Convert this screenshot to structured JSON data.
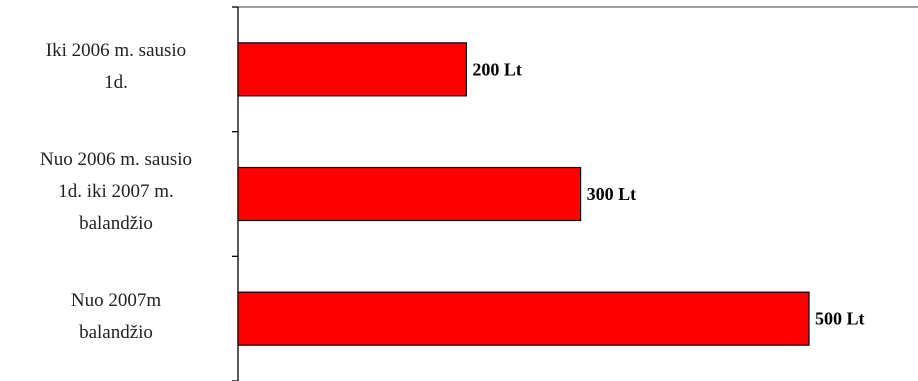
{
  "chart_data": {
    "type": "bar",
    "orientation": "horizontal",
    "categories": [
      "Iki 2006 m.  sausio 1d.",
      "Nuo 2006 m. sausio 1d. iki 2007 m. balandžio",
      "Nuo 2007m balandžio"
    ],
    "category_lines": [
      [
        "Iki 2006 m.  sausio",
        "1d."
      ],
      [
        "Nuo 2006 m. sausio",
        "1d. iki 2007 m.",
        "balandžio"
      ],
      [
        "Nuo 2007m",
        "balandžio"
      ]
    ],
    "values": [
      200,
      300,
      500
    ],
    "data_labels": [
      "200 Lt",
      "300 Lt",
      "500 Lt"
    ],
    "xlim": [
      0,
      550
    ],
    "grid": false,
    "bar_color": "#ff0000",
    "bar_edge_color": "#000000",
    "plot_border_color": "#808080",
    "title": "",
    "xlabel": "",
    "ylabel": ""
  }
}
